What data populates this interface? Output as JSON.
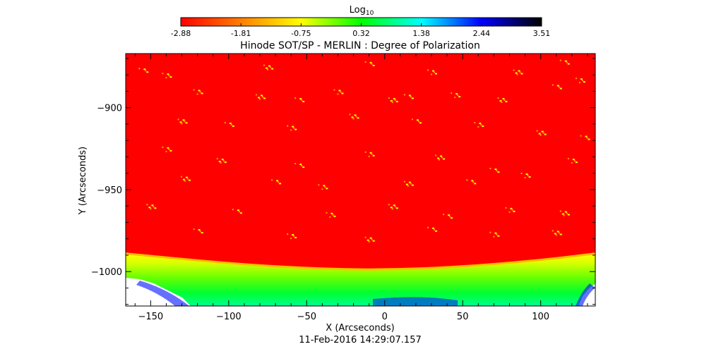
{
  "colorbar": {
    "label_base": "Log",
    "label_sub": "10",
    "ticks": [
      "-2.88",
      "-1.81",
      "-0.75",
      "0.32",
      "1.38",
      "2.44",
      "3.51"
    ],
    "range": [
      -2.88,
      3.51
    ],
    "colormap": [
      "#ff0000",
      "#ff8000",
      "#ffff00",
      "#00ff00",
      "#00ffff",
      "#0000ff",
      "#000000"
    ]
  },
  "title": "Hinode SOT/SP - MERLIN : Degree of Polarization",
  "footer_date": "11-Feb-2016 14:29:07.157",
  "chart_data": {
    "type": "heatmap",
    "title": "Hinode SOT/SP - MERLIN : Degree of Polarization",
    "xlabel": "X (Arcseconds)",
    "ylabel": "Y (Arcseconds)",
    "xlim": [
      -166,
      135
    ],
    "ylim": [
      -1021,
      -867
    ],
    "xticks": [
      -150,
      -100,
      -50,
      0,
      50,
      100
    ],
    "xtick_labels": [
      "−150",
      "−100",
      "−50",
      "0",
      "50",
      "100"
    ],
    "yticks": [
      -900,
      -950,
      -1000
    ],
    "ytick_labels": [
      "−900",
      "−950",
      "−1000"
    ],
    "limb": {
      "x": [
        -166,
        -100,
        -50,
        0,
        50,
        100,
        135
      ],
      "y": [
        -989,
        -995,
        -998,
        -999,
        -997,
        -993,
        -989
      ]
    },
    "disk_value_approx": -2.88,
    "offlimb_value_range_approx": [
      -0.75,
      0.32
    ],
    "bright_features": [
      [
        -155,
        -877
      ],
      [
        -140,
        -880
      ],
      [
        -75,
        -875
      ],
      [
        -10,
        -873
      ],
      [
        30,
        -878
      ],
      [
        85,
        -878
      ],
      [
        115,
        -872
      ],
      [
        -120,
        -890
      ],
      [
        -80,
        -893
      ],
      [
        -55,
        -895
      ],
      [
        -30,
        -890
      ],
      [
        5,
        -895
      ],
      [
        15,
        -893
      ],
      [
        45,
        -892
      ],
      [
        75,
        -895
      ],
      [
        110,
        -887
      ],
      [
        125,
        -883
      ],
      [
        -130,
        -908
      ],
      [
        -100,
        -910
      ],
      [
        -60,
        -912
      ],
      [
        -20,
        -905
      ],
      [
        20,
        -908
      ],
      [
        60,
        -910
      ],
      [
        100,
        -915
      ],
      [
        128,
        -918
      ],
      [
        -140,
        -925
      ],
      [
        -105,
        -932
      ],
      [
        -55,
        -935
      ],
      [
        -10,
        -928
      ],
      [
        35,
        -930
      ],
      [
        70,
        -938
      ],
      [
        120,
        -932
      ],
      [
        -128,
        -943
      ],
      [
        -70,
        -945
      ],
      [
        -40,
        -948
      ],
      [
        15,
        -946
      ],
      [
        55,
        -945
      ],
      [
        90,
        -941
      ],
      [
        -150,
        -960
      ],
      [
        -95,
        -963
      ],
      [
        -35,
        -965
      ],
      [
        5,
        -960
      ],
      [
        40,
        -966
      ],
      [
        80,
        -962
      ],
      [
        115,
        -964
      ],
      [
        -120,
        -975
      ],
      [
        -60,
        -978
      ],
      [
        -10,
        -980
      ],
      [
        30,
        -974
      ],
      [
        70,
        -977
      ],
      [
        110,
        -976
      ]
    ]
  }
}
